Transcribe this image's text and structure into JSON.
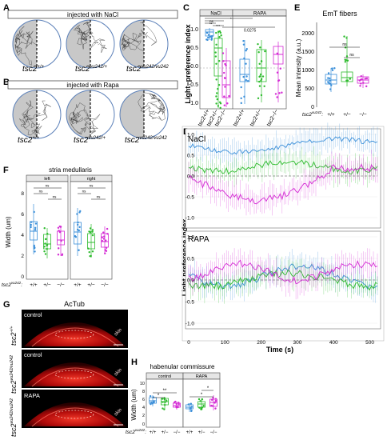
{
  "colors": {
    "blue": "#3b8fd9",
    "green": "#2dbb2d",
    "magenta": "#d42ad4",
    "dark": "#222222",
    "red": "#e01414"
  },
  "panel_letters": {
    "a": "A",
    "b": "B",
    "c": "C",
    "d": "D",
    "e": "E",
    "f": "F",
    "g": "G",
    "h": "H"
  },
  "panel_a": {
    "title": "injected with NaCl"
  },
  "panel_b": {
    "title": "injected with Rapa"
  },
  "genotypes": {
    "g1_base": "tsc2",
    "g1_sup": "+/+",
    "g2_base": "tsc2",
    "g2_sup": "vu242/+",
    "g3_base": "tsc2",
    "g3_sup": "vu242/vu242"
  },
  "panel_c": {
    "ylabel": "Light−preference index",
    "facets": [
      "NaCl",
      "RAPA"
    ],
    "yticks": [
      "1.0",
      "0.5",
      "0.0",
      "-0.5",
      "-1.0"
    ],
    "xlabels": [
      "tsc2+/+",
      "tsc2+/−",
      "tsc2−/−",
      "tsc2+/+",
      "tsc2+/−",
      "tsc2−/−"
    ],
    "sig": [
      "ns",
      "**",
      "***",
      "*",
      "0.0275"
    ]
  },
  "panel_e": {
    "title": "EmT fibers",
    "ylabel": "Mean intensity (a.u.)",
    "yticks": [
      "2000",
      "1500",
      "1000",
      "500",
      "0"
    ],
    "sig": [
      "ns",
      "ns"
    ],
    "xprefix_base": "tsc2",
    "xprefix_sup": "vu242",
    "xlabels": [
      "+/+",
      "+/−",
      "−/−"
    ]
  },
  "panel_d": {
    "ylabel": "Light preference index",
    "xlabel": "Time (s)",
    "label_top": "NaCl",
    "label_bottom": "RAPA",
    "yticks": [
      "1.0",
      "0.5",
      "0.0",
      "-0.5",
      "-1.0"
    ],
    "xticks": [
      "0",
      "100",
      "200",
      "300",
      "400",
      "500"
    ]
  },
  "panel_f": {
    "title": "stria medullaris",
    "facets": [
      "left",
      "right"
    ],
    "ylabel": "Width (um)",
    "yticks": [
      "8",
      "6",
      "4",
      "2",
      "0"
    ],
    "sig": [
      "ns",
      "ns",
      "ns",
      "ns",
      "ns",
      "ns"
    ],
    "xprefix_base": "tsc2",
    "xprefix_sup": "vu242",
    "xlabels": [
      "+/+",
      "+/−",
      "−/−",
      "+/+",
      "+/−",
      "−/−"
    ]
  },
  "panel_g": {
    "title": "AcTub",
    "conditions": [
      "control",
      "control",
      "RAPA"
    ],
    "skin": "skin",
    "row_labels": [
      {
        "base": "tsc2",
        "sup": "+/+"
      },
      {
        "base": "tsc2",
        "sup": "vu242/vu242"
      },
      {
        "base": "tsc2",
        "sup": "vu242/vu242"
      }
    ]
  },
  "panel_h": {
    "title": "habenular commissure",
    "facets": [
      "control",
      "RAPA"
    ],
    "ylabel": "Width (um)",
    "yticks": [
      "10",
      "8",
      "6",
      "4",
      "2",
      "0"
    ],
    "sig": [
      "*",
      "**",
      "*",
      "*"
    ],
    "xprefix_base": "tsc2",
    "xprefix_sup": "vu242",
    "xlabels": [
      "+/+",
      "+/−",
      "−/−",
      "+/+",
      "+/−",
      "−/−"
    ]
  }
}
